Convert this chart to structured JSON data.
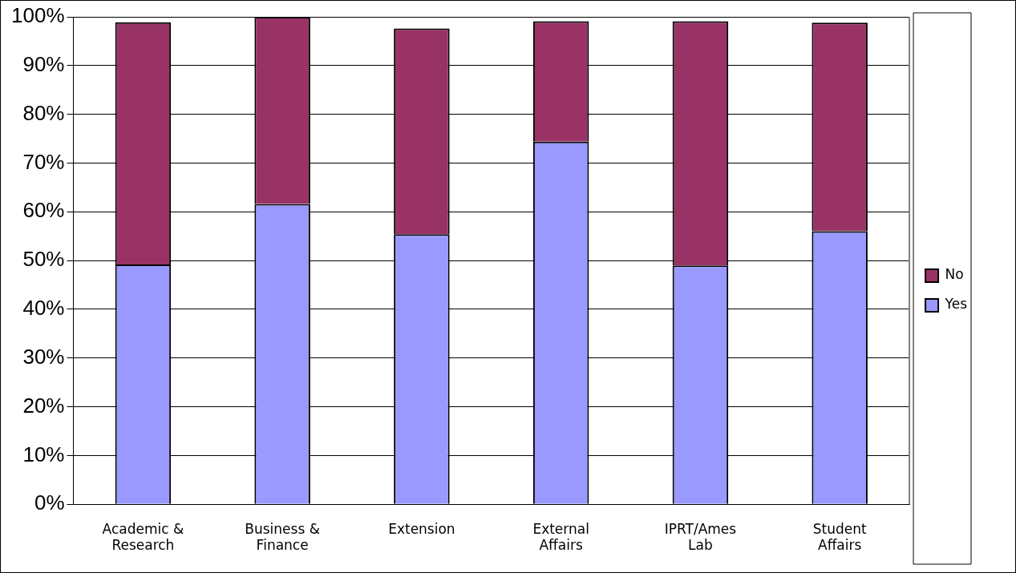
{
  "chart_data": {
    "type": "bar",
    "stacked": true,
    "categories": [
      "Academic & Research",
      "Business & Finance",
      "Extension",
      "External Affairs",
      "IPRT/Ames Lab",
      "Student Affairs"
    ],
    "series": [
      {
        "name": "Yes",
        "color": "#9999ff",
        "values": [
          49.2,
          61.6,
          55.4,
          74.4,
          49.0,
          56.0
        ]
      },
      {
        "name": "No",
        "color": "#993366",
        "values": [
          49.7,
          38.4,
          42.2,
          24.7,
          50.1,
          42.8
        ]
      }
    ],
    "ylim": [
      0,
      100
    ],
    "yticks": [
      {
        "value": 0,
        "label": "0%"
      },
      {
        "value": 10,
        "label": "10%"
      },
      {
        "value": 20,
        "label": "20%"
      },
      {
        "value": 30,
        "label": "30%"
      },
      {
        "value": 40,
        "label": "40%"
      },
      {
        "value": 50,
        "label": "50%"
      },
      {
        "value": 60,
        "label": "60%"
      },
      {
        "value": 70,
        "label": "70%"
      },
      {
        "value": 80,
        "label": "80%"
      },
      {
        "value": 90,
        "label": "90%"
      },
      {
        "value": 100,
        "label": "100%"
      }
    ],
    "grid": "y",
    "legend": "right"
  }
}
